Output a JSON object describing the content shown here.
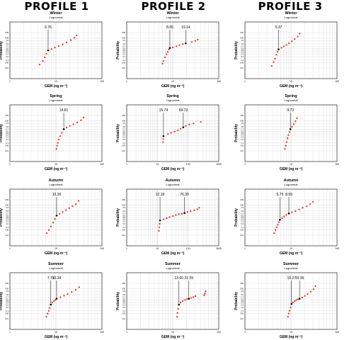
{
  "profiles": [
    "PROFILE 1",
    "PROFILE 2",
    "PROFILE 3"
  ],
  "common": {
    "xlabel": "GEM (ng m⁻³)",
    "ylabel": "Probability",
    "prob_ticks": [
      "0.01",
      "0.05",
      "0.1",
      "0.2",
      "0.3",
      "0.4",
      "0.5",
      "0.6",
      "0.7",
      "0.8",
      "0.9",
      "0.95",
      "0.99"
    ],
    "prob_tick_values": [
      0.0001,
      0.0005,
      0.001,
      0.002,
      0.003,
      0.004,
      0.005,
      0.006,
      0.007,
      0.008,
      0.009,
      0.0095,
      0.0099
    ],
    "colors": {
      "points": "#e8321e",
      "grid": "#cfcfcf",
      "frame": "#000000",
      "text": "#000000"
    }
  },
  "chart_data": [
    {
      "id": "p1-winter",
      "type": "scatter",
      "profile": "PROFILE 1",
      "title": "Winter",
      "subtitle": "Lognormal",
      "xlabel": "GEM (ng m⁻³)",
      "ylabel": "Probability",
      "x_scale": "log",
      "y_scale": "normal-probability",
      "xlim": [
        1,
        100
      ],
      "xticks": [
        "1",
        "10",
        "100"
      ],
      "ylim": [
        0.0001,
        0.9999
      ],
      "grid": true,
      "annotations": [
        {
          "label": "6.76",
          "x": 6.76,
          "p": 0.5
        }
      ],
      "segments": [
        {
          "x": [
            4.4,
            5.2,
            5.7,
            6.2,
            6.76,
            8.0,
            9.5,
            11.5,
            14.0,
            17.0,
            21.0,
            25.0,
            28.0
          ],
          "p": [
            0.03,
            0.08,
            0.18,
            0.32,
            0.5,
            0.57,
            0.64,
            0.71,
            0.78,
            0.85,
            0.91,
            0.95,
            0.975
          ]
        }
      ]
    },
    {
      "id": "p2-winter",
      "type": "scatter",
      "profile": "PROFILE 2",
      "title": "Winter",
      "subtitle": "Lognormal",
      "xlabel": "GEM (ng m⁻³)",
      "ylabel": "Probability",
      "x_scale": "log",
      "y_scale": "normal-probability",
      "xlim": [
        1,
        100
      ],
      "xticks": [
        "1",
        "10",
        "100"
      ],
      "ylim": [
        0.0001,
        0.9999
      ],
      "grid": true,
      "annotations": [
        {
          "label": "8.65",
          "x": 8.65,
          "p": 0.62
        },
        {
          "label": "19.14",
          "x": 19.14,
          "p": 0.82
        }
      ],
      "segments": [
        {
          "x": [
            6.0,
            6.3,
            6.8,
            7.3,
            7.8,
            8.3,
            8.65
          ],
          "p": [
            0.04,
            0.08,
            0.18,
            0.3,
            0.42,
            0.54,
            0.62
          ]
        },
        {
          "x": [
            10.0,
            12.0,
            14.0,
            16.5,
            19.14
          ],
          "p": [
            0.65,
            0.7,
            0.75,
            0.79,
            0.82
          ]
        },
        {
          "x": [
            26.0,
            31.0,
            35.0
          ],
          "p": [
            0.86,
            0.89,
            0.92
          ]
        }
      ]
    },
    {
      "id": "p3-winter",
      "type": "scatter",
      "profile": "PROFILE 3",
      "title": "Winter",
      "subtitle": "Lognormal",
      "xlabel": "GEM (ng m⁻³)",
      "ylabel": "Probability",
      "x_scale": "log",
      "y_scale": "normal-probability",
      "xlim": [
        1,
        100
      ],
      "xticks": [
        "1",
        "10",
        "100"
      ],
      "ylim": [
        0.0001,
        0.9999
      ],
      "grid": true,
      "annotations": [
        {
          "label": "5.37",
          "x": 5.37,
          "p": 0.55
        }
      ],
      "segments": [
        {
          "x": [
            3.8,
            4.2,
            4.5,
            4.8,
            5.1,
            5.37,
            6.2,
            7.0,
            8.0,
            9.0,
            10.5,
            12.0,
            14.0,
            15.5
          ],
          "p": [
            0.02,
            0.06,
            0.14,
            0.28,
            0.42,
            0.55,
            0.63,
            0.7,
            0.76,
            0.82,
            0.88,
            0.93,
            0.965,
            0.985
          ]
        }
      ]
    },
    {
      "id": "p1-spring",
      "type": "scatter",
      "profile": "PROFILE 1",
      "title": "Spring",
      "subtitle": "Lognormal",
      "xlabel": "GEM (ng m⁻³)",
      "ylabel": "Probability",
      "x_scale": "log",
      "y_scale": "normal-probability",
      "xlim": [
        1,
        100
      ],
      "xticks": [
        "1",
        "10",
        "100"
      ],
      "ylim": [
        0.0001,
        0.9999
      ],
      "grid": true,
      "annotations": [
        {
          "label": "14.81",
          "x": 14.81,
          "p": 0.7
        }
      ],
      "segments": [
        {
          "x": [
            10.3,
            10.6,
            11.0,
            11.6,
            12.4,
            13.5,
            14.81,
            17.0,
            20.0,
            24.0,
            29.0,
            35.0,
            40.0
          ],
          "p": [
            0.02,
            0.05,
            0.1,
            0.2,
            0.35,
            0.52,
            0.7,
            0.77,
            0.83,
            0.88,
            0.92,
            0.955,
            0.98
          ]
        }
      ]
    },
    {
      "id": "p2-spring",
      "type": "scatter",
      "profile": "PROFILE 2",
      "title": "Spring",
      "subtitle": "Lognormal",
      "xlabel": "GEM (ng m⁻³)",
      "ylabel": "Probability",
      "x_scale": "log",
      "y_scale": "normal-probability",
      "xlim": [
        1,
        1000
      ],
      "xticks": [
        "1",
        "10",
        "100",
        "1000"
      ],
      "ylim": [
        0.0001,
        0.9999
      ],
      "grid": true,
      "annotations": [
        {
          "label": "15.74",
          "x": 15.74,
          "p": 0.35
        },
        {
          "label": "69.73",
          "x": 69.73,
          "p": 0.78
        }
      ],
      "segments": [
        {
          "x": [
            15.3,
            15.5,
            15.74
          ],
          "p": [
            0.12,
            0.22,
            0.35
          ]
        },
        {
          "x": [
            22.0,
            28.0,
            36.0,
            46.0,
            57.0,
            69.73,
            85.0,
            110.0,
            150.0
          ],
          "p": [
            0.45,
            0.52,
            0.58,
            0.64,
            0.72,
            0.78,
            0.83,
            0.87,
            0.9
          ]
        },
        {
          "x": [
            260.0
          ],
          "p": [
            0.93
          ]
        }
      ]
    },
    {
      "id": "p3-spring",
      "type": "scatter",
      "profile": "PROFILE 3",
      "title": "Spring",
      "subtitle": "Lognormal",
      "xlabel": "GEM (ng m⁻³)",
      "ylabel": "Probability",
      "x_scale": "log",
      "y_scale": "normal-probability",
      "xlim": [
        1,
        100
      ],
      "xticks": [
        "1",
        "10",
        "100"
      ],
      "ylim": [
        0.0001,
        0.9999
      ],
      "grid": true,
      "annotations": [
        {
          "label": "9.73",
          "x": 9.73,
          "p": 0.7
        }
      ],
      "segments": [
        {
          "x": [
            7.4,
            7.7,
            8.0,
            8.4,
            8.8,
            9.3,
            9.73,
            10.5,
            11.5,
            12.5,
            13.5
          ],
          "p": [
            0.02,
            0.05,
            0.12,
            0.25,
            0.4,
            0.56,
            0.7,
            0.8,
            0.88,
            0.94,
            0.975
          ]
        }
      ]
    },
    {
      "id": "p1-autumn",
      "type": "scatter",
      "profile": "PROFILE 1",
      "title": "Autumn",
      "subtitle": "Lognormal",
      "xlabel": "GEM (ng m⁻³)",
      "ylabel": "Probability",
      "x_scale": "log",
      "y_scale": "normal-probability",
      "xlim": [
        1,
        100
      ],
      "xticks": [
        "1",
        "10",
        "100"
      ],
      "ylim": [
        0.0001,
        0.9999
      ],
      "grid": true,
      "annotations": [
        {
          "label": "10.36",
          "x": 10.36,
          "p": 0.6
        }
      ],
      "segments": [
        {
          "x": [
            6.3,
            7.0,
            7.8,
            8.7,
            9.5,
            10.36,
            12.0,
            14.0,
            16.5,
            19.5,
            23.0,
            27.0,
            31.0
          ],
          "p": [
            0.02,
            0.05,
            0.12,
            0.25,
            0.42,
            0.6,
            0.68,
            0.76,
            0.83,
            0.89,
            0.93,
            0.96,
            0.985
          ]
        }
      ]
    },
    {
      "id": "p2-autumn",
      "type": "scatter",
      "profile": "PROFILE 2",
      "title": "Autumn",
      "subtitle": "Lognormal",
      "xlabel": "GEM (ng m⁻³)",
      "ylabel": "Probability",
      "x_scale": "log",
      "y_scale": "normal-probability",
      "xlim": [
        1,
        1000
      ],
      "xticks": [
        "1",
        "10",
        "100",
        "1000"
      ],
      "ylim": [
        0.0001,
        0.9999
      ],
      "grid": true,
      "annotations": [
        {
          "label": "12.18",
          "x": 12.18,
          "p": 0.35
        },
        {
          "label": "76.30",
          "x": 76.3,
          "p": 0.72
        }
      ],
      "segments": [
        {
          "x": [
            11.2,
            11.5,
            11.8,
            12.18
          ],
          "p": [
            0.04,
            0.1,
            0.2,
            0.35
          ]
        },
        {
          "x": [
            16.0,
            20.0,
            25.0,
            32.0,
            40.0,
            50.0,
            62.0,
            76.3,
            95.0,
            120.0
          ],
          "p": [
            0.4,
            0.46,
            0.52,
            0.57,
            0.62,
            0.66,
            0.69,
            0.72,
            0.76,
            0.8
          ]
        },
        {
          "x": [
            160.0,
            200.0,
            230.0
          ],
          "p": [
            0.83,
            0.86,
            0.9
          ]
        }
      ]
    },
    {
      "id": "p3-autumn",
      "type": "scatter",
      "profile": "PROFILE 3",
      "title": "Autumn",
      "subtitle": "Lognormal",
      "xlabel": "GEM (ng m⁻³)",
      "ylabel": "Probability",
      "x_scale": "log",
      "y_scale": "normal-probability",
      "xlim": [
        1,
        100
      ],
      "xticks": [
        "1",
        "10",
        "100"
      ],
      "ylim": [
        0.0001,
        0.9999
      ],
      "grid": true,
      "annotations": [
        {
          "label": "5.75",
          "x": 5.75,
          "p": 0.38
        },
        {
          "label": "8.99",
          "x": 8.99,
          "p": 0.7
        }
      ],
      "segments": [
        {
          "x": [
            4.3,
            4.6,
            4.9,
            5.2,
            5.5,
            5.75,
            6.4,
            7.1,
            7.9,
            8.99,
            10.5,
            12.5,
            15.0,
            18.0,
            22.0,
            26.0,
            30.0
          ],
          "p": [
            0.02,
            0.05,
            0.1,
            0.17,
            0.27,
            0.38,
            0.46,
            0.55,
            0.63,
            0.7,
            0.75,
            0.8,
            0.85,
            0.9,
            0.93,
            0.96,
            0.98
          ]
        }
      ]
    },
    {
      "id": "p1-summer",
      "type": "scatter",
      "profile": "PROFILE 1",
      "title": "Summer",
      "subtitle": "Lognormal",
      "xlabel": "GEM (ng m⁻³)",
      "ylabel": "Probability",
      "x_scale": "log",
      "y_scale": "normal-probability",
      "xlim": [
        1,
        100
      ],
      "xticks": [
        "1",
        "10",
        "100"
      ],
      "ylim": [
        0.0001,
        0.9999
      ],
      "grid": true,
      "annotations": [
        {
          "label": "7.73",
          "x": 7.73,
          "p": 0.32
        },
        {
          "label": "10.34",
          "x": 10.34,
          "p": 0.62
        }
      ],
      "segments": [
        {
          "x": [
            6.2,
            6.6,
            7.0,
            7.35,
            7.73,
            8.3,
            9.0,
            9.7,
            10.34,
            12.5,
            15.0,
            18.0,
            22.0,
            27.0,
            32.0
          ],
          "p": [
            0.02,
            0.05,
            0.1,
            0.18,
            0.32,
            0.42,
            0.5,
            0.56,
            0.62,
            0.69,
            0.76,
            0.82,
            0.88,
            0.93,
            0.965
          ]
        }
      ]
    },
    {
      "id": "p2-summer",
      "type": "scatter",
      "profile": "PROFILE 2",
      "title": "Summer",
      "subtitle": "Lognormal",
      "xlabel": "GEM (ng m⁻³)",
      "ylabel": "Probability",
      "x_scale": "log",
      "y_scale": "normal-probability",
      "xlim": [
        1,
        100
      ],
      "xticks": [
        "1",
        "10",
        "100"
      ],
      "ylim": [
        0.0001,
        0.9999
      ],
      "grid": true,
      "annotations": [
        {
          "label": "13.60",
          "x": 13.6,
          "p": 0.32
        },
        {
          "label": "22.39",
          "x": 22.39,
          "p": 0.62
        }
      ],
      "segments": [
        {
          "x": [
            12.4,
            12.7,
            13.1,
            13.6,
            14.8,
            16.5,
            18.5,
            20.5,
            22.39,
            25.0,
            28.0,
            31.0
          ],
          "p": [
            0.02,
            0.06,
            0.15,
            0.32,
            0.42,
            0.5,
            0.56,
            0.6,
            0.62,
            0.66,
            0.7,
            0.74
          ]
        },
        {
          "x": [
            48.0,
            50.0,
            52.0
          ],
          "p": [
            0.78,
            0.84,
            0.9
          ]
        }
      ]
    },
    {
      "id": "p3-summer",
      "type": "scatter",
      "profile": "PROFILE 3",
      "title": "Summer",
      "subtitle": "Lognormal",
      "xlabel": "GEM (ng m⁻³)",
      "ylabel": "Probability",
      "x_scale": "log",
      "y_scale": "normal-probability",
      "xlim": [
        1,
        100
      ],
      "xticks": [
        "1",
        "10",
        "100"
      ],
      "ylim": [
        0.0001,
        0.9999
      ],
      "grid": true,
      "annotations": [
        {
          "label": "10.27",
          "x": 10.27,
          "p": 0.35
        },
        {
          "label": "15.36",
          "x": 15.36,
          "p": 0.62
        }
      ],
      "segments": [
        {
          "x": [
            8.6,
            8.9,
            9.3,
            9.8,
            10.27,
            11.0,
            12.0,
            13.0,
            14.2,
            15.36,
            17.5,
            20.0,
            23.0,
            27.0,
            31.0,
            34.0
          ],
          "p": [
            0.02,
            0.05,
            0.1,
            0.2,
            0.35,
            0.43,
            0.5,
            0.55,
            0.59,
            0.62,
            0.68,
            0.75,
            0.82,
            0.89,
            0.94,
            0.975
          ]
        }
      ]
    }
  ]
}
